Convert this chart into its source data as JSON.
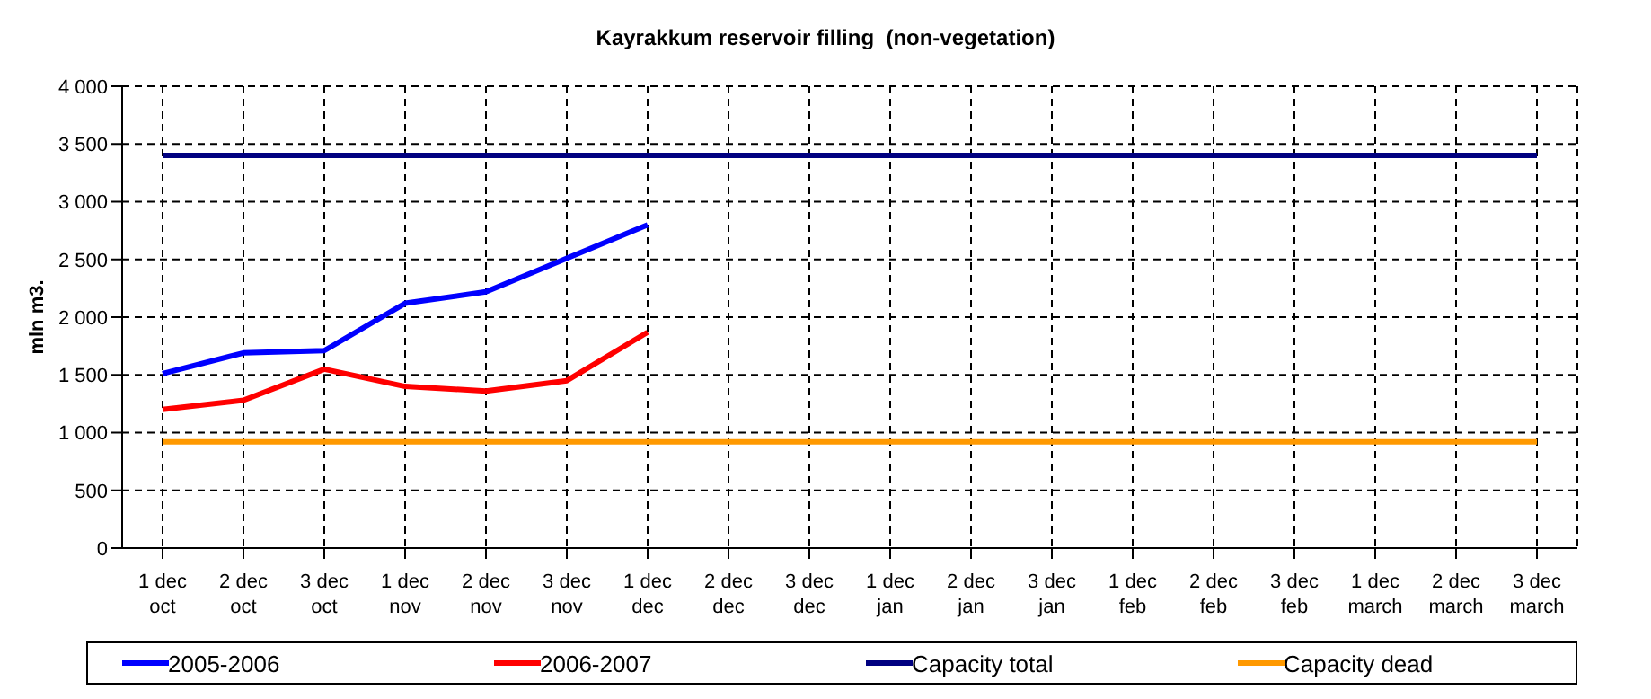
{
  "chart_data": {
    "type": "line",
    "title": "Kayrakkum reservoir filling  (non-vegetation)",
    "ylabel": "mln m3.",
    "categories": [
      "1 dec\noct",
      "2 dec\noct",
      "3 dec\noct",
      "1 dec\nnov",
      "2 dec\nnov",
      "3 dec\nnov",
      "1 dec\ndec",
      "2 dec\ndec",
      "3 dec\ndec",
      "1 dec\njan",
      "2 dec\njan",
      "3 dec\njan",
      "1 dec\nfeb",
      "2 dec\nfeb",
      "3 dec\nfeb",
      "1 dec\nmarch",
      "2 dec\nmarch",
      "3 dec\nmarch"
    ],
    "series": [
      {
        "name": "2005-2006",
        "color": "#0000ff",
        "values": [
          1510,
          1690,
          1710,
          2120,
          2220,
          2510,
          2800,
          null,
          null,
          null,
          null,
          null,
          null,
          null,
          null,
          null,
          null,
          null
        ]
      },
      {
        "name": "2006-2007",
        "color": "#ff0000",
        "values": [
          1200,
          1280,
          1550,
          1400,
          1360,
          1450,
          1870,
          null,
          null,
          null,
          null,
          null,
          null,
          null,
          null,
          null,
          null,
          null
        ]
      },
      {
        "name": "Capacity total",
        "color": "#000080",
        "values": [
          3400,
          3400,
          3400,
          3400,
          3400,
          3400,
          3400,
          3400,
          3400,
          3400,
          3400,
          3400,
          3400,
          3400,
          3400,
          3400,
          3400,
          3400
        ]
      },
      {
        "name": "Capacity dead",
        "color": "#ff9900",
        "values": [
          920,
          920,
          920,
          920,
          920,
          920,
          920,
          920,
          920,
          920,
          920,
          920,
          920,
          920,
          920,
          920,
          920,
          920
        ]
      }
    ],
    "ylim": [
      0,
      4000
    ],
    "yticks": [
      0,
      {
        "value": 500,
        "label": "500"
      },
      {
        "value": 1000,
        "label": "1 000"
      },
      {
        "value": 1500,
        "label": "1 500"
      },
      {
        "value": 2000,
        "label": "2 000"
      },
      {
        "value": 2500,
        "label": "2 500"
      },
      {
        "value": 3000,
        "label": "3 000"
      },
      {
        "value": 3500,
        "label": "3 500"
      },
      {
        "value": 4000,
        "label": "4 000"
      }
    ],
    "grid": true,
    "legend": "bottom",
    "marker": "none",
    "line_style": "solid"
  }
}
